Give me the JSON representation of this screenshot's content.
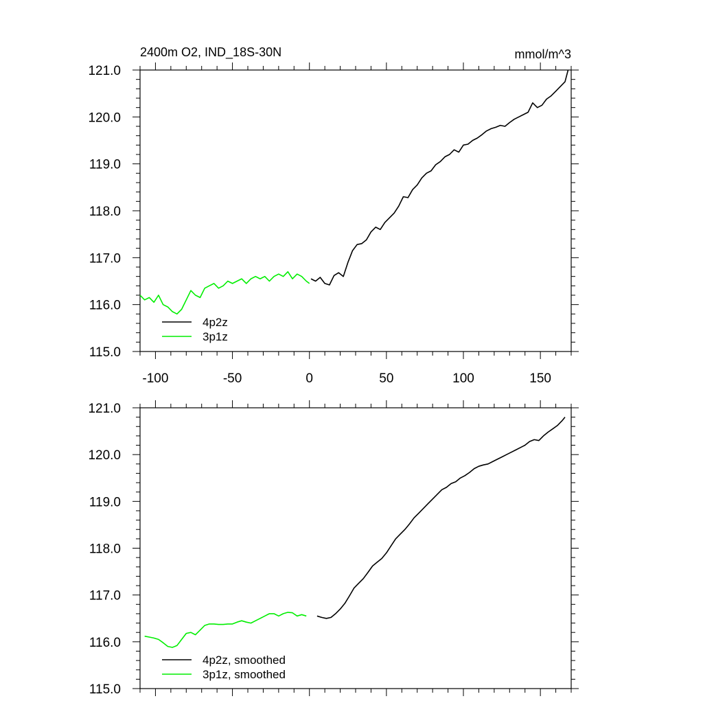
{
  "chart_data": [
    {
      "type": "line",
      "title_left": "2400m O2, IND_18S-30N",
      "title_right": "mmol/m^3",
      "xlim": [
        -110,
        170
      ],
      "ylim": [
        115.0,
        121.0
      ],
      "xticks": [
        -100,
        -50,
        0,
        50,
        100,
        150
      ],
      "xtick_labels": [
        "-100",
        "-50",
        "0",
        "50",
        "100",
        "150"
      ],
      "yticks": [
        115,
        116,
        117,
        118,
        119,
        120,
        121
      ],
      "ytick_labels": [
        "115.0",
        "116.0",
        "117.0",
        "118.0",
        "119.0",
        "120.0",
        "121.0"
      ],
      "series": [
        {
          "name": "4p2z",
          "color": "#000000",
          "x": [
            1,
            4,
            7,
            10,
            13,
            16,
            19,
            22,
            25,
            28,
            31,
            34,
            37,
            40,
            43,
            46,
            49,
            52,
            55,
            58,
            61,
            64,
            67,
            70,
            73,
            76,
            79,
            82,
            85,
            88,
            91,
            94,
            97,
            100,
            103,
            106,
            109,
            112,
            115,
            118,
            121,
            124,
            127,
            130,
            133,
            136,
            139,
            142,
            145,
            148,
            151,
            154,
            157,
            160,
            163,
            166,
            168
          ],
          "values": [
            116.55,
            116.5,
            116.58,
            116.45,
            116.42,
            116.62,
            116.68,
            116.6,
            116.9,
            117.15,
            117.28,
            117.3,
            117.38,
            117.55,
            117.65,
            117.6,
            117.75,
            117.85,
            117.95,
            118.1,
            118.3,
            118.28,
            118.45,
            118.55,
            118.7,
            118.8,
            118.85,
            118.98,
            119.05,
            119.15,
            119.2,
            119.3,
            119.25,
            119.4,
            119.42,
            119.5,
            119.55,
            119.62,
            119.7,
            119.75,
            119.78,
            119.82,
            119.8,
            119.88,
            119.95,
            120.0,
            120.05,
            120.1,
            120.3,
            120.2,
            120.25,
            120.38,
            120.45,
            120.55,
            120.65,
            120.75,
            121.0
          ]
        },
        {
          "name": "3p1z",
          "color": "#00ee00",
          "x": [
            -110,
            -107,
            -104,
            -101,
            -98,
            -95,
            -92,
            -89,
            -86,
            -83,
            -80,
            -77,
            -74,
            -71,
            -68,
            -65,
            -62,
            -59,
            -56,
            -53,
            -50,
            -47,
            -44,
            -41,
            -38,
            -35,
            -32,
            -29,
            -26,
            -23,
            -20,
            -17,
            -14,
            -11,
            -8,
            -5,
            -2,
            0
          ],
          "values": [
            116.2,
            116.1,
            116.15,
            116.05,
            116.2,
            116.0,
            115.95,
            115.85,
            115.8,
            115.9,
            116.1,
            116.3,
            116.2,
            116.15,
            116.35,
            116.4,
            116.45,
            116.35,
            116.4,
            116.5,
            116.45,
            116.5,
            116.55,
            116.45,
            116.55,
            116.6,
            116.55,
            116.6,
            116.5,
            116.6,
            116.65,
            116.6,
            116.7,
            116.55,
            116.65,
            116.6,
            116.5,
            116.45
          ]
        }
      ],
      "legend": [
        "4p2z",
        "3p1z"
      ]
    },
    {
      "type": "line",
      "xlim": [
        -110,
        170
      ],
      "ylim": [
        115.0,
        121.0
      ],
      "yticks": [
        115,
        116,
        117,
        118,
        119,
        120,
        121
      ],
      "ytick_labels": [
        "115.0",
        "116.0",
        "117.0",
        "118.0",
        "119.0",
        "120.0",
        "121.0"
      ],
      "series": [
        {
          "name": "4p2z, smoothed",
          "color": "#000000",
          "x": [
            5,
            8,
            11,
            14,
            17,
            20,
            23,
            26,
            29,
            32,
            35,
            38,
            41,
            44,
            47,
            50,
            53,
            56,
            59,
            62,
            65,
            68,
            71,
            74,
            77,
            80,
            83,
            86,
            89,
            92,
            95,
            98,
            101,
            104,
            107,
            110,
            113,
            116,
            119,
            122,
            125,
            128,
            131,
            134,
            137,
            140,
            143,
            146,
            149,
            152,
            155,
            158,
            161,
            164,
            166
          ],
          "values": [
            116.55,
            116.52,
            116.5,
            116.52,
            116.6,
            116.7,
            116.82,
            116.98,
            117.15,
            117.25,
            117.35,
            117.48,
            117.62,
            117.7,
            117.78,
            117.9,
            118.05,
            118.2,
            118.3,
            118.4,
            118.52,
            118.65,
            118.75,
            118.85,
            118.95,
            119.05,
            119.15,
            119.25,
            119.3,
            119.38,
            119.42,
            119.5,
            119.55,
            119.62,
            119.7,
            119.75,
            119.78,
            119.8,
            119.85,
            119.9,
            119.95,
            120.0,
            120.05,
            120.1,
            120.15,
            120.2,
            120.28,
            120.32,
            120.3,
            120.4,
            120.48,
            120.55,
            120.62,
            120.72,
            120.8
          ]
        },
        {
          "name": "3p1z, smoothed",
          "color": "#00ee00",
          "x": [
            -107,
            -104,
            -101,
            -98,
            -95,
            -92,
            -89,
            -86,
            -83,
            -80,
            -77,
            -74,
            -71,
            -68,
            -65,
            -62,
            -59,
            -56,
            -53,
            -50,
            -47,
            -44,
            -41,
            -38,
            -35,
            -32,
            -29,
            -26,
            -23,
            -20,
            -17,
            -14,
            -11,
            -8,
            -5,
            -2
          ],
          "values": [
            116.12,
            116.1,
            116.08,
            116.05,
            115.98,
            115.9,
            115.88,
            115.92,
            116.05,
            116.18,
            116.2,
            116.15,
            116.25,
            116.35,
            116.38,
            116.38,
            116.37,
            116.37,
            116.38,
            116.38,
            116.42,
            116.45,
            116.42,
            116.4,
            116.45,
            116.5,
            116.55,
            116.6,
            116.6,
            116.55,
            116.6,
            116.63,
            116.62,
            116.55,
            116.58,
            116.55
          ]
        }
      ],
      "legend": [
        "4p2z, smoothed",
        "3p1z, smoothed"
      ]
    }
  ]
}
